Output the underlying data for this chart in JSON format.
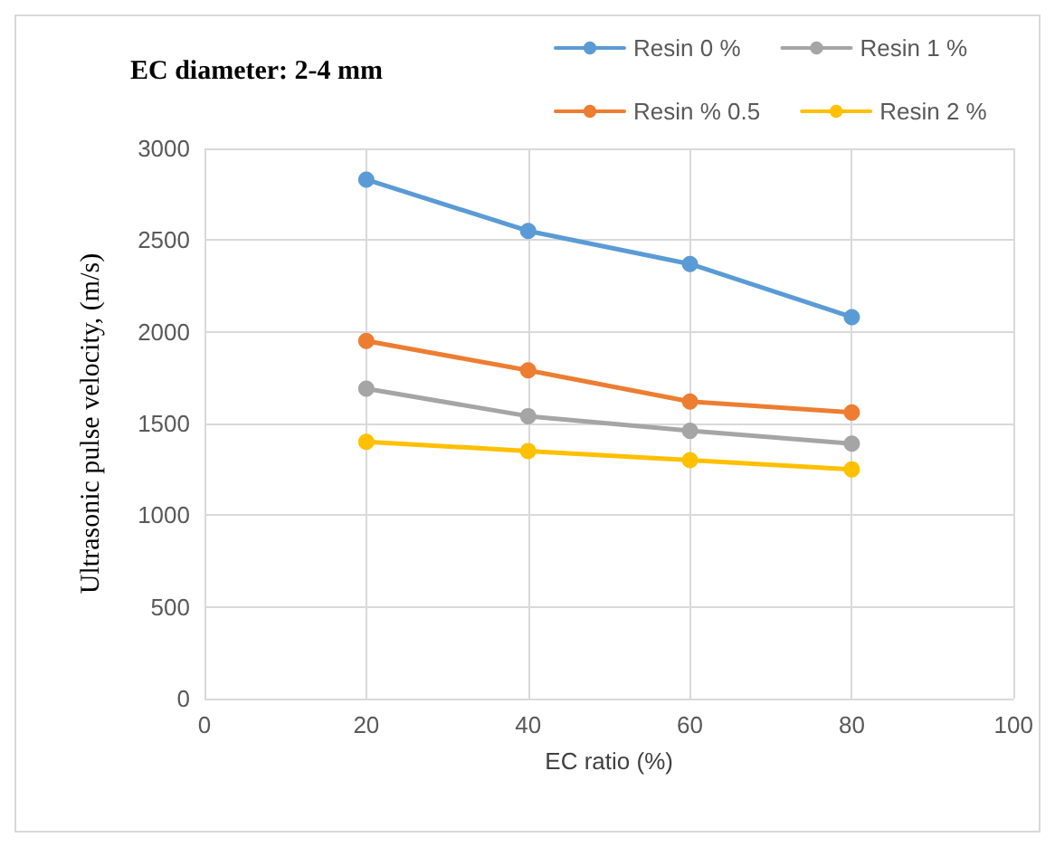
{
  "chart_data": {
    "type": "line",
    "title": "EC diameter: 2-4 mm",
    "xlabel": "EC ratio (%)",
    "ylabel": "Ultrasonic pulse velocity, (m/s)",
    "x": [
      20,
      40,
      60,
      80
    ],
    "series": [
      {
        "name": "Resin 0 %",
        "color": "#5b9bd5",
        "values": [
          2830,
          2550,
          2370,
          2080
        ]
      },
      {
        "name": "Resin 1 %",
        "color": "#a5a5a5",
        "values": [
          1690,
          1540,
          1460,
          1390
        ]
      },
      {
        "name": "Resin % 0.5",
        "color": "#ed7d31",
        "values": [
          1950,
          1790,
          1620,
          1560
        ]
      },
      {
        "name": "Resin 2 %",
        "color": "#ffc000",
        "values": [
          1400,
          1350,
          1300,
          1250
        ]
      }
    ],
    "xlim": [
      0,
      100
    ],
    "xticks": [
      0,
      20,
      40,
      60,
      80,
      100
    ],
    "ylim": [
      0,
      3000
    ],
    "yticks": [
      0,
      500,
      1000,
      1500,
      2000,
      2500,
      3000
    ],
    "grid": true,
    "legend": "top right",
    "marker": "circle",
    "line_style": "solid"
  }
}
